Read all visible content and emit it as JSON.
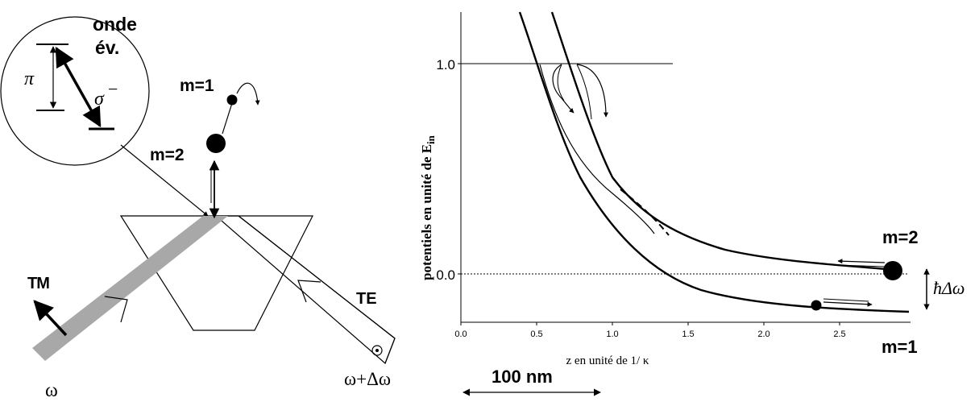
{
  "left_diagram": {
    "inset_label_line1": "onde",
    "inset_label_line2": "év.",
    "pi_label": "π",
    "sigma_label": "σ",
    "sigma_superscript": "−",
    "m1_label": "m=1",
    "m2_label": "m=2",
    "tm_label": "TM",
    "te_label": "TE",
    "omega_label": "ω",
    "omega_delta_label": "ω+Δω"
  },
  "right_plot": {
    "ylabel": "potentiels en unité de E",
    "ylabel_subscript": "in",
    "xlabel": "z en unité de 1/ κ",
    "y_tick_1": "1.0",
    "y_tick_0": "0.0",
    "x_ticks": [
      "0.0",
      "0.5",
      "1.0",
      "1.5",
      "2.0",
      "2.5"
    ],
    "m2_label": "m=2",
    "m1_label": "m=1",
    "hbar_label": "ħΔω",
    "scale_label": "100 nm"
  }
}
